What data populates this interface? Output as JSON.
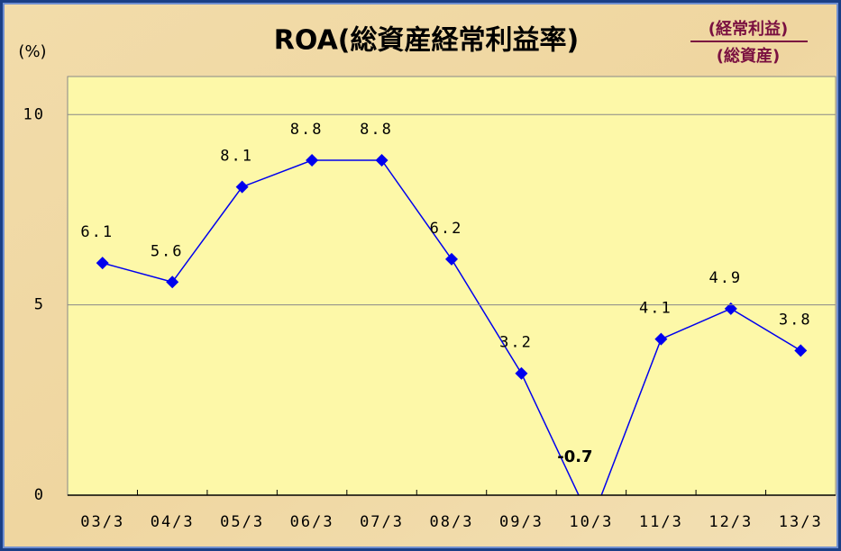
{
  "chart_data": {
    "type": "line",
    "title": "ROA(総資産経常利益率)",
    "subtitle_numerator": "(経常利益)",
    "subtitle_denominator": "(総資産)",
    "y_label": "(%)",
    "categories": [
      "03/3",
      "04/3",
      "05/3",
      "06/3",
      "07/3",
      "08/3",
      "09/3",
      "10/3",
      "11/3",
      "12/3",
      "13/3"
    ],
    "series": [
      {
        "name": "ROA",
        "color": "#0000ee",
        "values": [
          6.1,
          5.6,
          8.1,
          8.8,
          8.8,
          6.2,
          3.2,
          -0.7,
          4.1,
          4.9,
          3.8
        ]
      }
    ],
    "ylim": [
      0,
      11
    ],
    "yticks": [
      0,
      5,
      10
    ],
    "grid": true
  }
}
